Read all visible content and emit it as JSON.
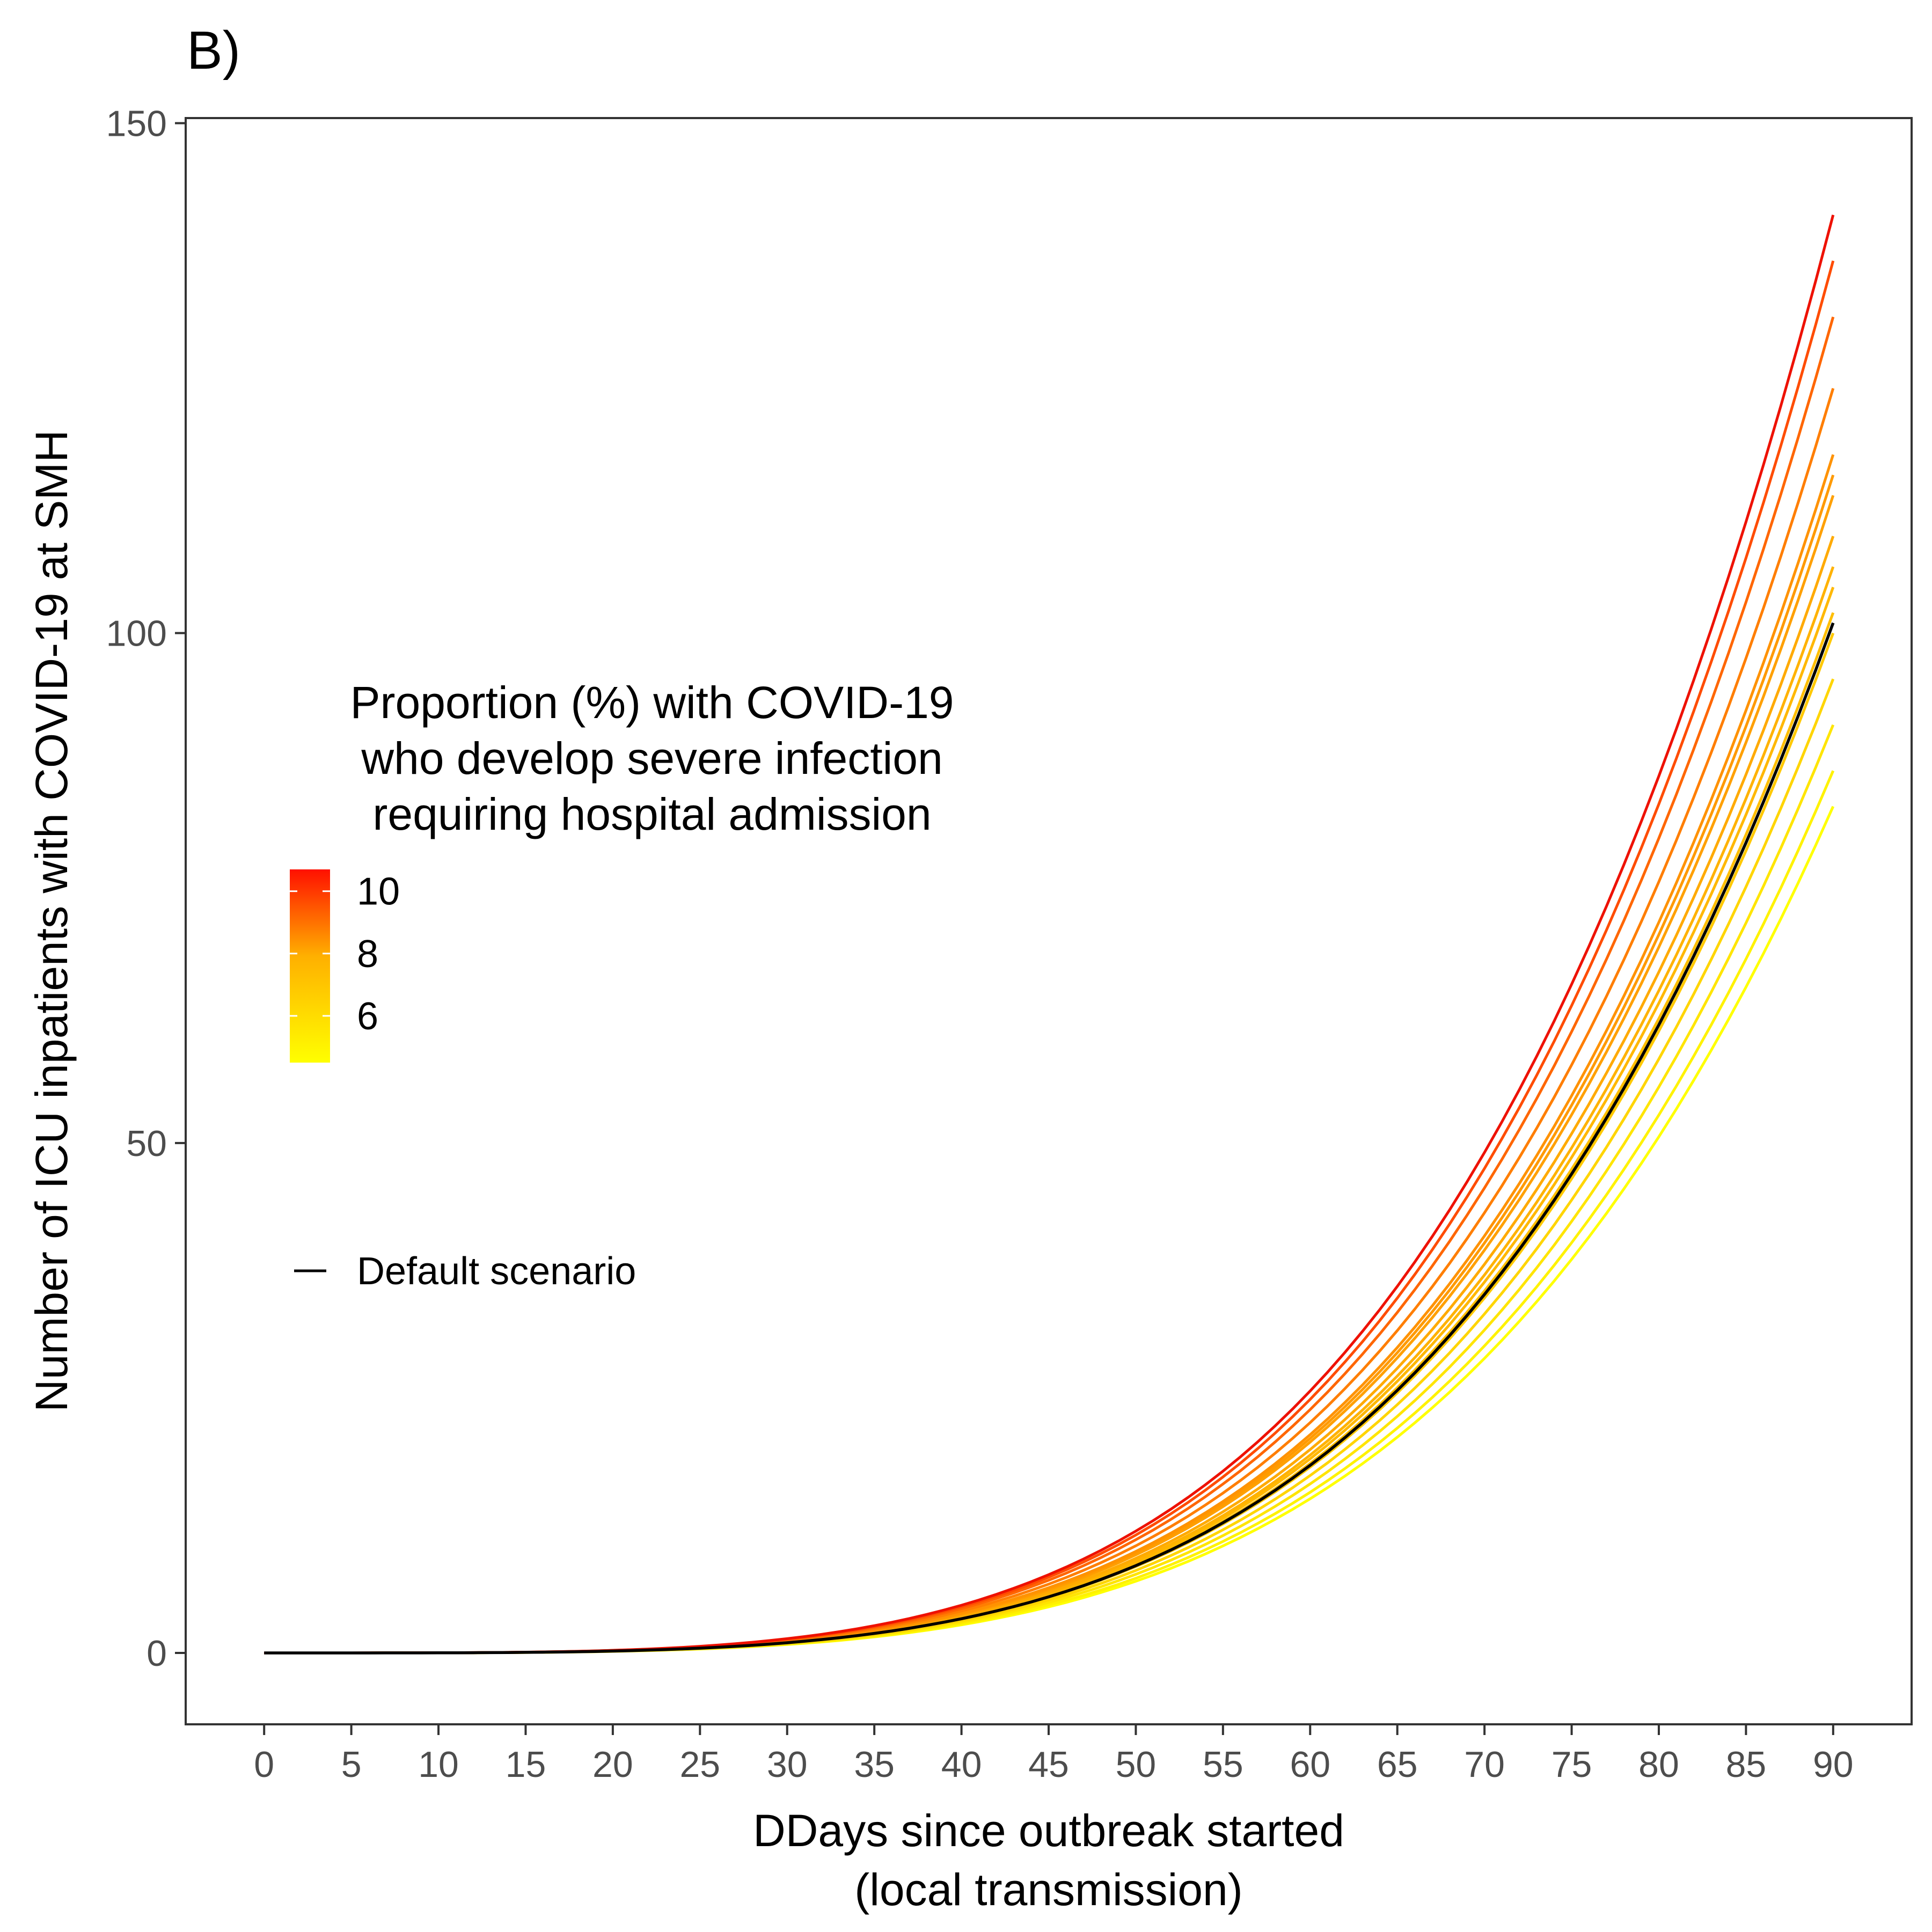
{
  "panel_label": "B)",
  "chart_data": {
    "type": "line",
    "title": "",
    "xlabel_lines": [
      "DDays since outbreak started",
      "(local transmission)"
    ],
    "ylabel": "Number of ICU inpatients with COVID-19 at SMH",
    "xlim": [
      -4.5,
      94.5
    ],
    "ylim": [
      -7,
      150.5
    ],
    "x_ticks": [
      0,
      5,
      10,
      15,
      20,
      25,
      30,
      35,
      40,
      45,
      50,
      55,
      60,
      65,
      70,
      75,
      80,
      85,
      90
    ],
    "y_ticks": [
      0,
      50,
      100,
      150
    ],
    "grid": false,
    "curve_model": "y = final * (x/90)^4.2",
    "x_range": [
      0,
      90
    ],
    "series_end_values": [
      83,
      86.5,
      91,
      95.5,
      100,
      102,
      104.5,
      106.5,
      109.5,
      113.5,
      115.5,
      117.5,
      124,
      131,
      136.5,
      141
    ],
    "series_colors": [
      "#FFFF00",
      "#FFF200",
      "#FFE500",
      "#FFD500",
      "#FFC800",
      "#FFBE00",
      "#FFB800",
      "#FFB200",
      "#FFAA00",
      "#FFA000",
      "#FF9A00",
      "#FF9200",
      "#FF7E00",
      "#FF6600",
      "#FF4C00",
      "#EE1100"
    ],
    "default_series": {
      "name": "Default scenario",
      "end_value": 101,
      "color": "#000000"
    },
    "legend": {
      "title_lines": [
        "Proportion (%) with COVID-19",
        "who develop severe infection",
        "requiring hospital admission"
      ],
      "colorbar_labels": [
        "10",
        "8",
        "6"
      ],
      "colorbar_label_values": [
        10,
        8,
        6
      ],
      "colorbar_range": [
        4.5,
        10.7
      ],
      "colorbar_low_color": "#FFFF00",
      "colorbar_mid_color": "#FFB000",
      "colorbar_high_color": "#FF1000",
      "line_entry_label": "Default scenario",
      "placement": "left-center"
    }
  }
}
